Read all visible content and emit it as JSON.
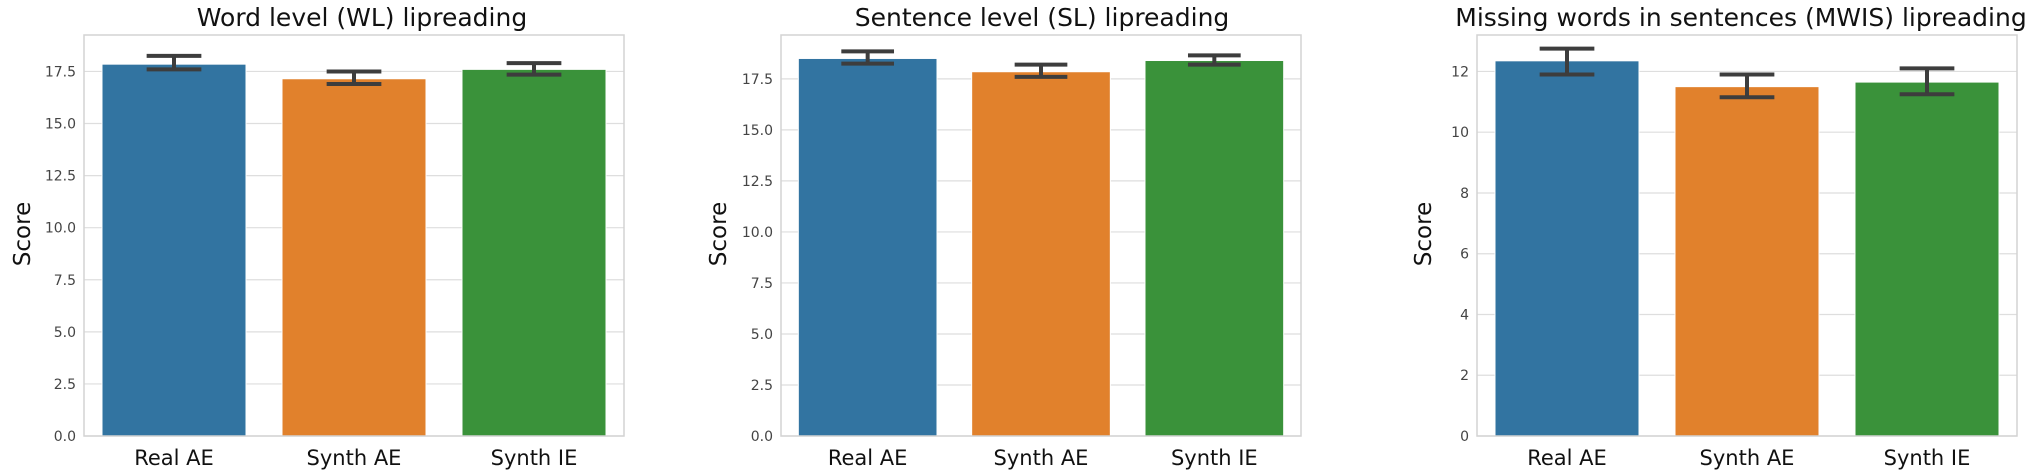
{
  "chart_data": [
    {
      "type": "bar",
      "title": "Word level (WL) lipreading",
      "xlabel": "",
      "ylabel": "Score",
      "ylim": [
        0,
        19.25
      ],
      "yticks": [
        "0.0",
        "2.5",
        "5.0",
        "7.5",
        "10.0",
        "12.5",
        "15.0",
        "17.5"
      ],
      "ytick_values": [
        0,
        2.5,
        5,
        7.5,
        10,
        12.5,
        15,
        17.5
      ],
      "categories": [
        "Real AE",
        "Synth AE",
        "Synth IE"
      ],
      "values": [
        17.85,
        17.15,
        17.6
      ],
      "error_low": [
        17.6,
        16.9,
        17.35
      ],
      "error_high": [
        18.25,
        17.5,
        17.9
      ],
      "grid": true
    },
    {
      "type": "bar",
      "title": "Sentence level (SL) lipreading",
      "xlabel": "",
      "ylabel": "Score",
      "ylim": [
        0,
        19.65
      ],
      "yticks": [
        "0.0",
        "2.5",
        "5.0",
        "7.5",
        "10.0",
        "12.5",
        "15.0",
        "17.5"
      ],
      "ytick_values": [
        0,
        2.5,
        5,
        7.5,
        10,
        12.5,
        15,
        17.5
      ],
      "categories": [
        "Real AE",
        "Synth AE",
        "Synth IE"
      ],
      "values": [
        18.5,
        17.85,
        18.4
      ],
      "error_low": [
        18.25,
        17.6,
        18.2
      ],
      "error_high": [
        18.85,
        18.2,
        18.65
      ],
      "grid": true
    },
    {
      "type": "bar",
      "title": "Missing words in sentences (MWIS) lipreading",
      "xlabel": "",
      "ylabel": "Score",
      "ylim": [
        0,
        13.2
      ],
      "yticks": [
        "0",
        "2",
        "4",
        "6",
        "8",
        "10",
        "12"
      ],
      "ytick_values": [
        0,
        2,
        4,
        6,
        8,
        10,
        12
      ],
      "categories": [
        "Real AE",
        "Synth AE",
        "Synth IE"
      ],
      "values": [
        12.35,
        11.5,
        11.65
      ],
      "error_low": [
        11.9,
        11.15,
        11.25
      ],
      "error_high": [
        12.75,
        11.9,
        12.1
      ],
      "grid": true
    }
  ],
  "colors": [
    "#3274a1",
    "#e1812c",
    "#3a923a"
  ]
}
